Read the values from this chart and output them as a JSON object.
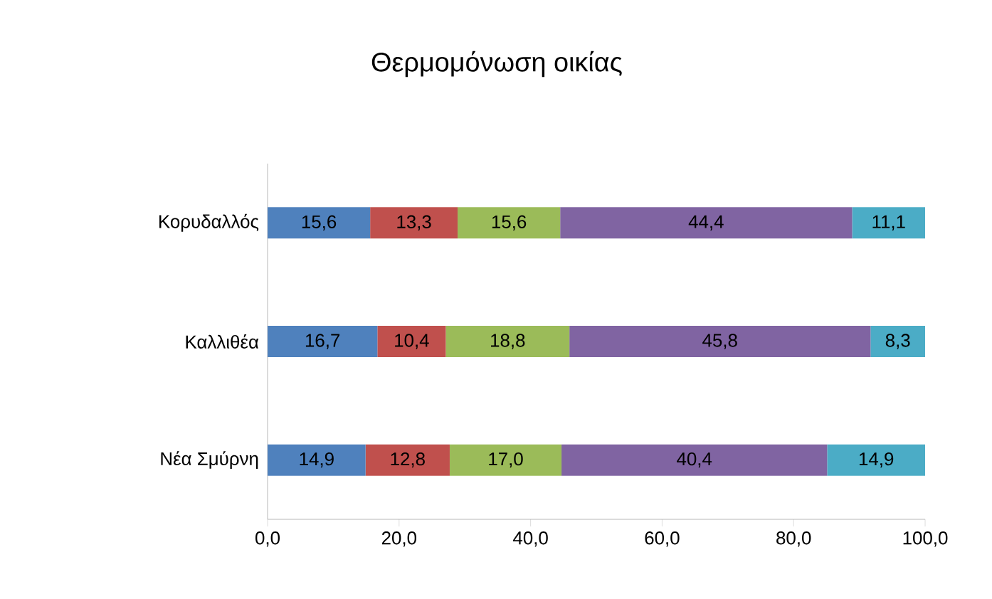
{
  "chart_data": {
    "type": "bar",
    "title": "Θερμομόνωση οικίας",
    "orientation": "horizontal",
    "stacked": true,
    "categories": [
      "Κορυδαλλός",
      "Καλλιθέα",
      "Νέα Σμύρνη"
    ],
    "series": [
      {
        "color": "#4f81bd",
        "values": [
          15.6,
          16.7,
          14.9
        ],
        "value_labels": [
          "15,6",
          "16,7",
          "14,9"
        ]
      },
      {
        "color": "#c0504d",
        "values": [
          13.3,
          10.4,
          12.8
        ],
        "value_labels": [
          "13,3",
          "10,4",
          "12,8"
        ]
      },
      {
        "color": "#9bbb59",
        "values": [
          15.6,
          18.8,
          17.0
        ],
        "value_labels": [
          "15,6",
          "18,8",
          "17,0"
        ]
      },
      {
        "color": "#8064a2",
        "values": [
          44.4,
          45.8,
          40.4
        ],
        "value_labels": [
          "44,4",
          "45,8",
          "40,4"
        ]
      },
      {
        "color": "#4bacc6",
        "values": [
          11.1,
          8.3,
          14.9
        ],
        "value_labels": [
          "11,1",
          "8,3",
          "14,9"
        ]
      }
    ],
    "xlim": [
      0,
      100
    ],
    "xticks": [
      {
        "value": 0,
        "label": "0,0"
      },
      {
        "value": 20,
        "label": "20,0"
      },
      {
        "value": 40,
        "label": "40,0"
      },
      {
        "value": 60,
        "label": "60,0"
      },
      {
        "value": 80,
        "label": "80,0"
      },
      {
        "value": 100,
        "label": "100,0"
      }
    ],
    "grid": false
  }
}
